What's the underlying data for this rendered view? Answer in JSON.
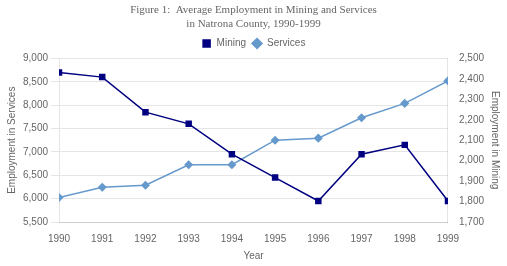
{
  "chart_data": {
    "type": "line",
    "title": [
      "Figure 1:  Average Employment in Mining and Services",
      "in Natrona County, 1990-1999"
    ],
    "categories": [
      "1990",
      "1991",
      "1992",
      "1993",
      "1994",
      "1995",
      "1996",
      "1997",
      "1998",
      "1999"
    ],
    "xlabel": "Year",
    "ylabel": "Employment in Services",
    "y2label": "Employment in Mining",
    "series": [
      {
        "name": "Mining",
        "color": "#000080",
        "marker": "square",
        "values": [
          8700,
          8600,
          7850,
          7600,
          6950,
          6450,
          5950,
          6950,
          7150,
          5950
        ]
      },
      {
        "name": "Services",
        "color": "#6699CC",
        "marker": "diamond",
        "axis": "y2",
        "values": [
          1820,
          1870,
          1880,
          1980,
          1980,
          2100,
          2110,
          2210,
          2280,
          2390
        ]
      }
    ],
    "ylim": [
      5500,
      9000
    ],
    "yticks": [
      {
        "value": 5500,
        "label": "5,500"
      },
      {
        "value": 6000,
        "label": "6,000"
      },
      {
        "value": 6500,
        "label": "6,500"
      },
      {
        "value": 7000,
        "label": "7,000"
      },
      {
        "value": 7500,
        "label": "7,500"
      },
      {
        "value": 8000,
        "label": "8,000"
      },
      {
        "value": 8500,
        "label": "8,500"
      },
      {
        "value": 9000,
        "label": "9,000"
      }
    ],
    "y2lim": [
      1700,
      2500
    ],
    "y2ticks": [
      {
        "value": 1700,
        "label": "1,700"
      },
      {
        "value": 1800,
        "label": "1,800"
      },
      {
        "value": 1900,
        "label": "1,900"
      },
      {
        "value": 2000,
        "label": "2,000"
      },
      {
        "value": 2100,
        "label": "2,100"
      },
      {
        "value": 2200,
        "label": "2,200"
      },
      {
        "value": 2300,
        "label": "2,300"
      },
      {
        "value": 2400,
        "label": "2,400"
      },
      {
        "value": 2500,
        "label": "2,500"
      }
    ],
    "grid": true,
    "legend": "top"
  }
}
